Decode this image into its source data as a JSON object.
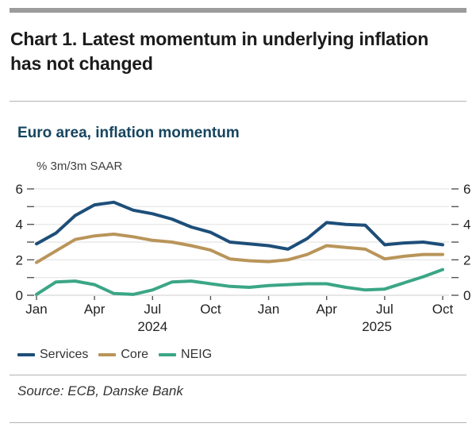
{
  "page": {
    "heading": "Chart 1. Latest momentum in underlying inflation has not changed",
    "source": "Source: ECB, Danske Bank"
  },
  "chart_data": {
    "type": "line",
    "title": "Euro area, inflation momentum",
    "unit_label": "% 3m/3m SAAR",
    "x": [
      "Jan 2024",
      "Feb 2024",
      "Mar 2024",
      "Apr 2024",
      "May 2024",
      "Jun 2024",
      "Jul 2024",
      "Aug 2024",
      "Sep 2024",
      "Oct 2024",
      "Nov 2024",
      "Dec 2024",
      "Jan 2025",
      "Feb 2025",
      "Mar 2025",
      "Apr 2025",
      "May 2025",
      "Jun 2025",
      "Jul 2025",
      "Aug 2025",
      "Sep 2025",
      "Oct 2025"
    ],
    "x_ticks": [
      {
        "index": 0,
        "label": "Jan"
      },
      {
        "index": 3,
        "label": "Apr"
      },
      {
        "index": 6,
        "label": "Jul"
      },
      {
        "index": 9,
        "label": "Oct"
      },
      {
        "index": 12,
        "label": "Jan"
      },
      {
        "index": 15,
        "label": "Apr"
      },
      {
        "index": 18,
        "label": "Jul"
      },
      {
        "index": 21,
        "label": "Oct"
      }
    ],
    "year_labels": [
      {
        "index": 6,
        "label": "2024"
      },
      {
        "index": 17.6,
        "label": "2025"
      }
    ],
    "ylim": [
      0,
      6
    ],
    "y_major_ticks": [
      0,
      2,
      4,
      6
    ],
    "y_minor_ticks": [
      1,
      3,
      5
    ],
    "grid": true,
    "legend_position": "bottom",
    "series": [
      {
        "name": "Services",
        "color": "#1d4e79",
        "values": [
          2.9,
          3.5,
          4.5,
          5.1,
          5.25,
          4.8,
          4.6,
          4.3,
          3.85,
          3.55,
          3.0,
          2.9,
          2.8,
          2.6,
          3.2,
          4.1,
          4.0,
          3.95,
          2.85,
          2.95,
          3.0,
          2.85
        ]
      },
      {
        "name": "Core",
        "color": "#b9955a",
        "values": [
          1.85,
          2.5,
          3.15,
          3.35,
          3.45,
          3.3,
          3.1,
          3.0,
          2.8,
          2.55,
          2.05,
          1.95,
          1.9,
          2.0,
          2.3,
          2.8,
          2.7,
          2.6,
          2.05,
          2.2,
          2.3,
          2.3
        ]
      },
      {
        "name": "NEIG",
        "color": "#3ba686",
        "values": [
          0.05,
          0.75,
          0.8,
          0.6,
          0.1,
          0.05,
          0.3,
          0.75,
          0.8,
          0.65,
          0.5,
          0.45,
          0.55,
          0.6,
          0.65,
          0.65,
          0.45,
          0.3,
          0.35,
          0.7,
          1.05,
          1.45
        ]
      }
    ]
  },
  "colors": {
    "top_bar": "#9c9c9c",
    "divider": "#b3b3b3",
    "grid_line": "#e4e4e4",
    "baseline": "#d6d6d6",
    "tick": "#555555",
    "axis_text": "#222222",
    "heading_text": "#1b1b1b",
    "chart_title_text": "#16455f"
  }
}
